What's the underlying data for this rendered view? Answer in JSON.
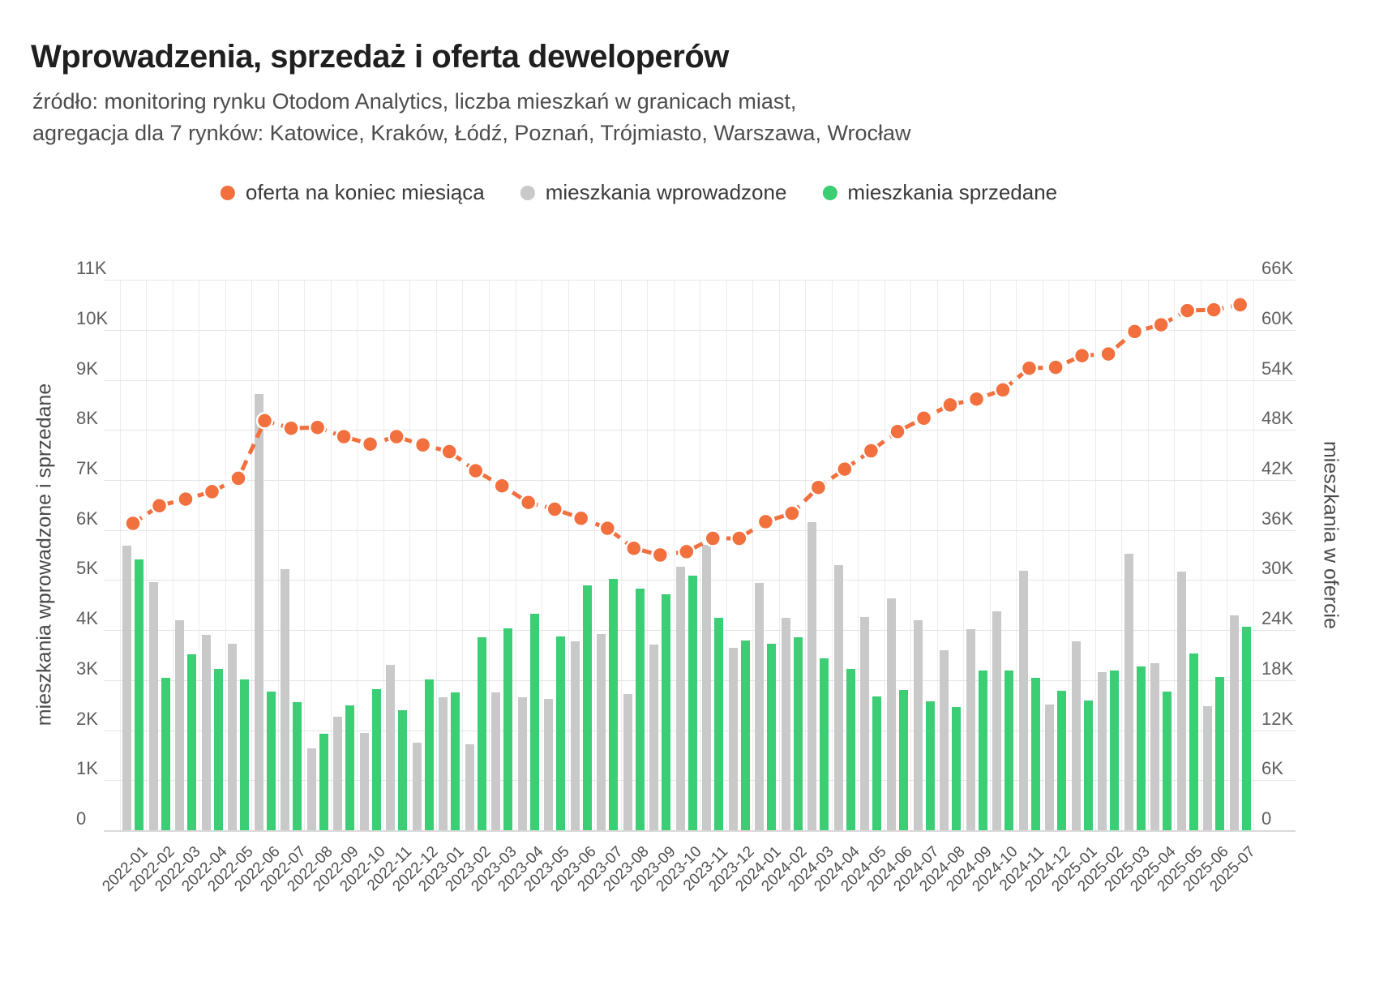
{
  "header": {
    "title": "Wprowadzenia, sprzedaż i oferta deweloperów",
    "subtitle_line1": "źródło: monitoring rynku Otodom Analytics, liczba mieszkań w granicach miast,",
    "subtitle_line2": "agregacja dla 7 rynków: Katowice, Kraków, Łódź, Poznań, Trójmiasto, Warszawa, Wrocław"
  },
  "legend": {
    "items": [
      {
        "label": "oferta na koniec miesiąca",
        "color": "#F2703E",
        "series": "oferta"
      },
      {
        "label": "mieszkania wprowadzone",
        "color": "#C9C9C9",
        "series": "wprowadzone"
      },
      {
        "label": "mieszkania sprzedane",
        "color": "#3BCE74",
        "series": "sprzedane"
      }
    ]
  },
  "axes": {
    "left": {
      "title": "mieszkania wprowadzone i sprzedane",
      "ticks": [
        "0",
        "1K",
        "2K",
        "3K",
        "4K",
        "5K",
        "6K",
        "7K",
        "8K",
        "9K",
        "10K",
        "11K"
      ],
      "range": [
        0,
        11000
      ]
    },
    "right": {
      "title": "mieszkania w ofercie",
      "ticks": [
        "0",
        "6K",
        "12K",
        "18K",
        "24K",
        "30K",
        "36K",
        "42K",
        "48K",
        "54K",
        "60K",
        "66K"
      ],
      "range": [
        0,
        66000
      ]
    }
  },
  "colors": {
    "grid": "#E4E4E4",
    "axis_line": "#D9D9D9",
    "tick_text": "#5E5E5E",
    "title_text": "#1F1F1F",
    "subtitle_text": "#4D4D4D"
  },
  "chart_data": {
    "type": "bar",
    "note": "grouped bars on left axis + dashed line with dots on right axis",
    "x": [
      "2022-01",
      "2022-02",
      "2022-03",
      "2022-04",
      "2022-05",
      "2022-06",
      "2022-07",
      "2022-08",
      "2022-09",
      "2022-10",
      "2022-11",
      "2022-12",
      "2023-01",
      "2023-02",
      "2023-03",
      "2023-04",
      "2023-05",
      "2023-06",
      "2023-07",
      "2023-08",
      "2023-09",
      "2023-10",
      "2023-11",
      "2023-12",
      "2024-01",
      "2024-02",
      "2024-03",
      "2024-04",
      "2024-05",
      "2024-06",
      "2024-07",
      "2024-08",
      "2024-09",
      "2024-10",
      "2024-11",
      "2024-12",
      "2025-01",
      "2025-02",
      "2025-03",
      "2025-04",
      "2025-05",
      "2025-06",
      "2025-07"
    ],
    "series": [
      {
        "name": "mieszkania wprowadzone",
        "type": "bar",
        "axis": "left",
        "color": "#C9C9C9",
        "values": [
          5680,
          4960,
          4190,
          3900,
          3730,
          8720,
          5220,
          1640,
          2270,
          1950,
          3310,
          1750,
          2660,
          1720,
          2760,
          2660,
          2630,
          3780,
          3920,
          2720,
          3710,
          5270,
          5710,
          3650,
          4950,
          4240,
          6160,
          5300,
          4260,
          4640,
          4190,
          3600,
          4020,
          4380,
          5190,
          2510,
          3770,
          3160,
          5520,
          3340,
          5170,
          2480,
          4290
        ]
      },
      {
        "name": "mieszkania sprzedane",
        "type": "bar",
        "axis": "left",
        "color": "#3BCE74",
        "values": [
          5420,
          3050,
          3520,
          3230,
          3010,
          2770,
          2560,
          1930,
          2500,
          2820,
          2400,
          3010,
          2760,
          3860,
          4030,
          4320,
          3880,
          4900,
          5030,
          4830,
          4720,
          5090,
          4240,
          3790,
          3720,
          3860,
          3440,
          3220,
          2670,
          2800,
          2570,
          2460,
          3190,
          3190,
          3040,
          2780,
          2590,
          3200,
          3280,
          2770,
          3540,
          3060,
          4060
        ]
      },
      {
        "name": "oferta na koniec miesiąca",
        "type": "line",
        "style": "dashed",
        "axis": "right",
        "color": "#F2703E",
        "values": [
          36800,
          38900,
          39700,
          40600,
          42200,
          49100,
          48200,
          48300,
          47200,
          46300,
          47200,
          46200,
          45400,
          43100,
          41300,
          39300,
          38500,
          37400,
          36200,
          33800,
          33000,
          33400,
          35000,
          35000,
          37000,
          38000,
          41100,
          43300,
          45500,
          47800,
          49400,
          51000,
          51700,
          52800,
          55400,
          55500,
          56900,
          57100,
          59800,
          60600,
          62300,
          62400,
          63000
        ]
      }
    ],
    "ylim_left": [
      0,
      11000
    ],
    "ylim_right": [
      0,
      66000
    ],
    "grid": true,
    "legend_position": "top"
  }
}
